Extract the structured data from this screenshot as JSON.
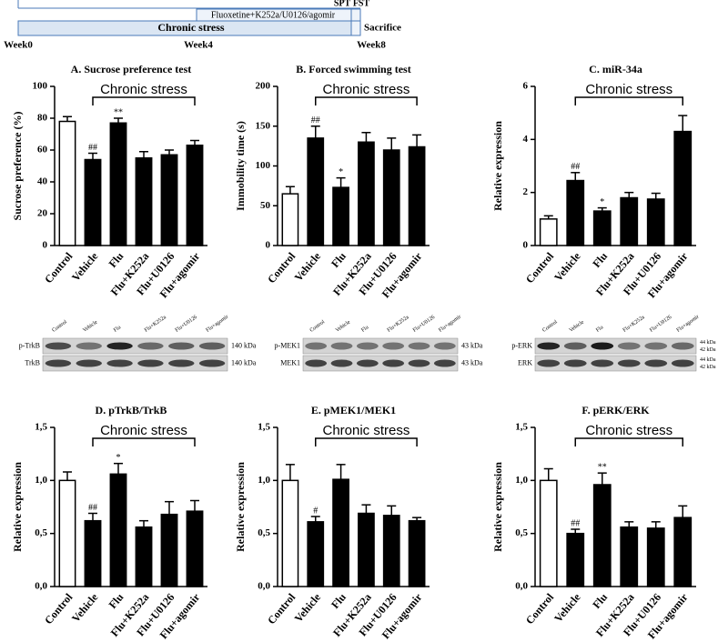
{
  "timeline": {
    "treatment": "Fluoxetine+K252a/U0126/agomir",
    "spt": "SPT",
    "fst": "FST",
    "stress": "Chronic  stress",
    "sacrifice": "Sacrifice",
    "weeks": [
      "Week0",
      "Week4",
      "Week8"
    ]
  },
  "blots": [
    {
      "lanes": [
        "Control",
        "Vehicle",
        "Flu",
        "Flu+K252a",
        "Flu+U0126",
        "Flu+agomir"
      ],
      "rows": [
        {
          "label": "p-TrkB",
          "kda": [
            "140 kDa"
          ]
        },
        {
          "label": "TrkB",
          "kda": [
            "140 kDa"
          ]
        }
      ]
    },
    {
      "lanes": [
        "Control",
        "Vehicle",
        "Flu",
        "Flu+K252a",
        "Flu+U0126",
        "Flu+agomir"
      ],
      "rows": [
        {
          "label": "p-MEK1",
          "kda": [
            "43 kDa"
          ]
        },
        {
          "label": "MEK1",
          "kda": [
            "43 kDa"
          ]
        }
      ]
    },
    {
      "lanes": [
        "Control",
        "Vehicle",
        "Flu",
        "Flu+K252a",
        "Flu+U0126",
        "Flu+agomir"
      ],
      "rows": [
        {
          "label": "p-ERK",
          "kda": [
            "44 kDa",
            "42 kDa"
          ]
        },
        {
          "label": "ERK",
          "kda": [
            "44 kDa",
            "42 kDa"
          ]
        }
      ]
    }
  ],
  "chart_data": [
    {
      "type": "bar",
      "title": "A. Sucrose preference test",
      "ylabel": "Sucrose preference (%)",
      "bracket_label": "Chronic stress",
      "categories": [
        "Control",
        "Vehicle",
        "Flu",
        "Flu+K252a",
        "Flu+U0126",
        "Flu+agomir"
      ],
      "values": [
        78,
        54,
        77,
        55,
        57,
        63
      ],
      "errors": [
        3,
        4,
        3,
        4,
        3,
        3
      ],
      "annotations": [
        null,
        "##",
        "**",
        null,
        null,
        null
      ],
      "colors": [
        "#ffffff",
        "#000000",
        "#000000",
        "#000000",
        "#000000",
        "#000000"
      ],
      "ylim": [
        0,
        100
      ],
      "yticks": [
        0,
        20,
        40,
        60,
        80,
        100
      ]
    },
    {
      "type": "bar",
      "title": "B. Forced swimming test",
      "ylabel": "Immobility time (s)",
      "bracket_label": "Chronic stress",
      "categories": [
        "Control",
        "Vehicle",
        "Flu",
        "Flu+K252a",
        "Flu+U0126",
        "Flu+agomir"
      ],
      "values": [
        65,
        135,
        73,
        130,
        120,
        124
      ],
      "errors": [
        9,
        15,
        12,
        12,
        15,
        15
      ],
      "annotations": [
        null,
        "##",
        "*",
        null,
        null,
        null
      ],
      "colors": [
        "#ffffff",
        "#000000",
        "#000000",
        "#000000",
        "#000000",
        "#000000"
      ],
      "ylim": [
        0,
        200
      ],
      "yticks": [
        0,
        50,
        100,
        150,
        200
      ]
    },
    {
      "type": "bar",
      "title": "C. miR-34a",
      "ylabel": "Relative expression",
      "bracket_label": "Chronic stress",
      "categories": [
        "Control",
        "Vehicle",
        "Flu",
        "Flu+K252a",
        "Flu+U0126",
        "Flu+agomir"
      ],
      "values": [
        1.0,
        2.45,
        1.3,
        1.8,
        1.75,
        4.3
      ],
      "errors": [
        0.12,
        0.3,
        0.12,
        0.2,
        0.22,
        0.6
      ],
      "annotations": [
        null,
        "##",
        "*",
        null,
        null,
        null
      ],
      "colors": [
        "#ffffff",
        "#000000",
        "#000000",
        "#000000",
        "#000000",
        "#000000"
      ],
      "ylim": [
        0,
        6
      ],
      "yticks": [
        0,
        2,
        4,
        6
      ]
    },
    {
      "type": "bar",
      "title": "D. pTrkB/TrkB",
      "ylabel": "Relative expression",
      "bracket_label": "Chronic stress",
      "categories": [
        "Control",
        "Vehicle",
        "Flu",
        "Flu+K252a",
        "Flu+U0126",
        "Flu+agomir"
      ],
      "values": [
        1.0,
        0.62,
        1.06,
        0.56,
        0.68,
        0.71
      ],
      "errors": [
        0.08,
        0.07,
        0.1,
        0.06,
        0.12,
        0.1
      ],
      "annotations": [
        null,
        "##",
        "*",
        null,
        null,
        null
      ],
      "colors": [
        "#ffffff",
        "#000000",
        "#000000",
        "#000000",
        "#000000",
        "#000000"
      ],
      "ylim": [
        0,
        1.5
      ],
      "yticks": [
        {
          "value": 0,
          "label": "0,0"
        },
        {
          "value": 0.5,
          "label": "0,5"
        },
        {
          "value": 1,
          "label": "1,0"
        },
        {
          "value": 1.5,
          "label": "1,5"
        }
      ]
    },
    {
      "type": "bar",
      "title": "E. pMEK1/MEK1",
      "ylabel": "Relative expression",
      "bracket_label": "Chronic stress",
      "categories": [
        "Control",
        "Vehicle",
        "Flu",
        "Flu+K252a",
        "Flu+U0126",
        "Flu+agomir"
      ],
      "values": [
        1.0,
        0.61,
        1.01,
        0.69,
        0.67,
        0.62
      ],
      "errors": [
        0.15,
        0.05,
        0.14,
        0.08,
        0.09,
        0.03
      ],
      "annotations": [
        null,
        "#",
        null,
        null,
        null,
        null
      ],
      "colors": [
        "#ffffff",
        "#000000",
        "#000000",
        "#000000",
        "#000000",
        "#000000"
      ],
      "ylim": [
        0,
        1.5
      ],
      "yticks": [
        {
          "value": 0,
          "label": "0,0"
        },
        {
          "value": 0.5,
          "label": "0,5"
        },
        {
          "value": 1,
          "label": "1,0"
        },
        {
          "value": 1.5,
          "label": "1,5"
        }
      ]
    },
    {
      "type": "bar",
      "title": "F. pERK/ERK",
      "ylabel": "Relative expression",
      "bracket_label": "Chronic stress",
      "categories": [
        "Control",
        "Vehicle",
        "Flu",
        "Flu+K252a",
        "Flu+U0126",
        "Flu+agomir"
      ],
      "values": [
        1.0,
        0.5,
        0.96,
        0.56,
        0.55,
        0.65
      ],
      "errors": [
        0.11,
        0.04,
        0.11,
        0.05,
        0.06,
        0.11
      ],
      "annotations": [
        null,
        "##",
        "**",
        null,
        null,
        null
      ],
      "colors": [
        "#ffffff",
        "#000000",
        "#000000",
        "#000000",
        "#000000",
        "#000000"
      ],
      "ylim": [
        0,
        1.5
      ],
      "yticks": [
        {
          "value": 0,
          "label": "0,0"
        },
        {
          "value": 0.5,
          "label": "0,5"
        },
        {
          "value": 1,
          "label": "1,0"
        },
        {
          "value": 1.5,
          "label": "1,5"
        }
      ]
    }
  ]
}
